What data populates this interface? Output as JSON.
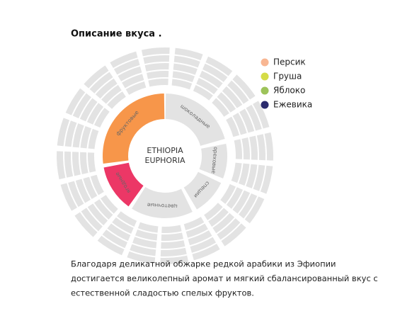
{
  "header": {
    "title": "Описание вкуса ."
  },
  "wheel": {
    "center": [
      "ETHIOPIA",
      "EUPHORIA"
    ],
    "segments": [
      {
        "label": "шоколадные",
        "color": "#e3e3e3"
      },
      {
        "label": "ореховые",
        "color": "#e3e3e3"
      },
      {
        "label": "специи",
        "color": "#e3e3e3"
      },
      {
        "label": "цветочные",
        "color": "#e3e3e3"
      },
      {
        "label": "ягодные",
        "color": "#ec3766"
      },
      {
        "label": "фруктовые",
        "color": "#f7964a"
      }
    ]
  },
  "legend": [
    {
      "label": "Персик",
      "color": "#f8b692"
    },
    {
      "label": "Груша",
      "color": "#d5dc47"
    },
    {
      "label": "Яблоко",
      "color": "#9dc35a"
    },
    {
      "label": "Ежевика",
      "color": "#2a2a6c"
    }
  ],
  "description": [
    "Благодаря деликатной обжарке редкой арабики из Эфиопии",
    "достигается великолепный аромат и мягкий сбалансированный вкус с",
    "естественной сладостью спелых фруктов."
  ]
}
